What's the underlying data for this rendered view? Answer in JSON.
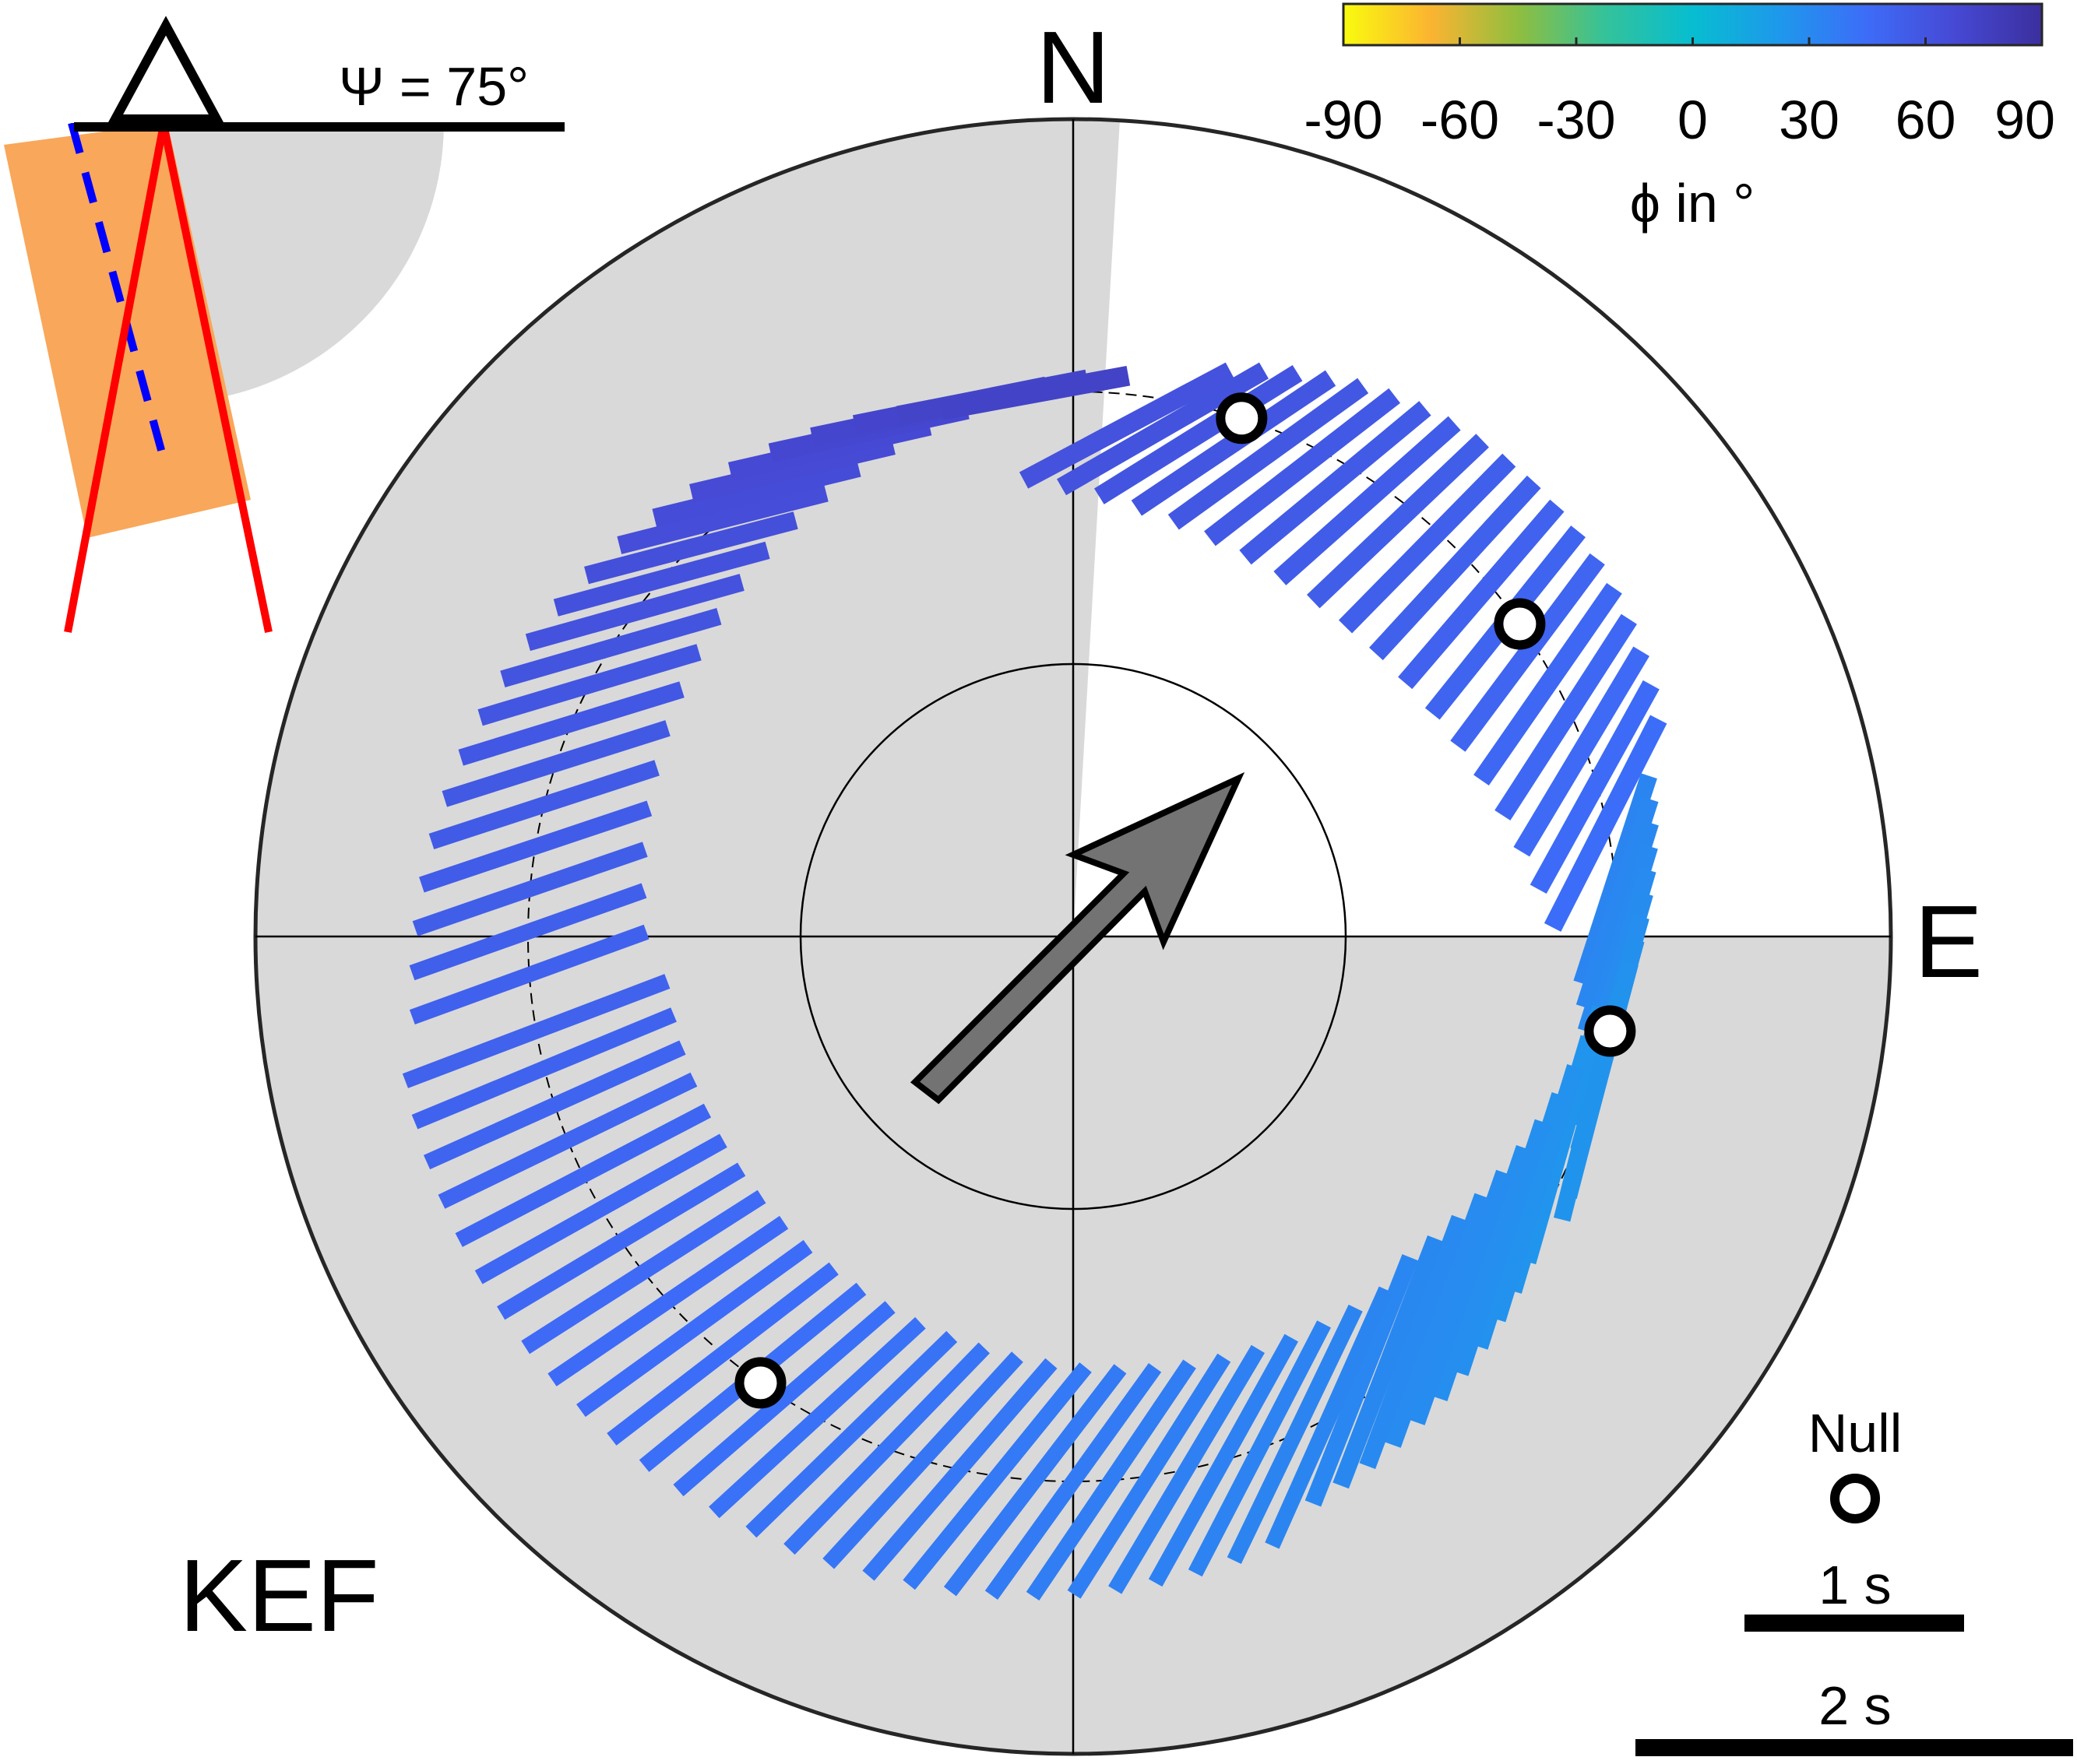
{
  "station": "KEF",
  "north_label": "N",
  "east_label": "E",
  "psi_label": "Ψ = 75°",
  "colorbar": {
    "label": "ϕ in °",
    "ticks": [
      "-90",
      "-60",
      "-30",
      "0",
      "30",
      "60",
      "90"
    ],
    "range": [
      -90,
      90
    ],
    "colors": [
      "#f9fb0e",
      "#fbb431",
      "#8fbe3f",
      "#34c29a",
      "#07bdd0",
      "#1e98ec",
      "#3d6cf8",
      "#4649d4",
      "#3b2f9e"
    ]
  },
  "legend": {
    "null_label": "Null",
    "scale_1s_label": "1 s",
    "scale_2s_label": "2 s"
  },
  "colors": {
    "gray_sector": "#d9d9d9",
    "arrow_fill": "#737373",
    "fast_axis_line": "#ff0000",
    "dashed_line": "#0000ff",
    "layer_fill": "#f9a75a"
  },
  "chart_data": {
    "type": "stereoplot",
    "title": "",
    "psi_deg": 75,
    "fast_axis_arrow_azimuth_deg": 45,
    "null_backazimuths_deg": [
      18,
      55,
      100,
      215
    ]
  }
}
